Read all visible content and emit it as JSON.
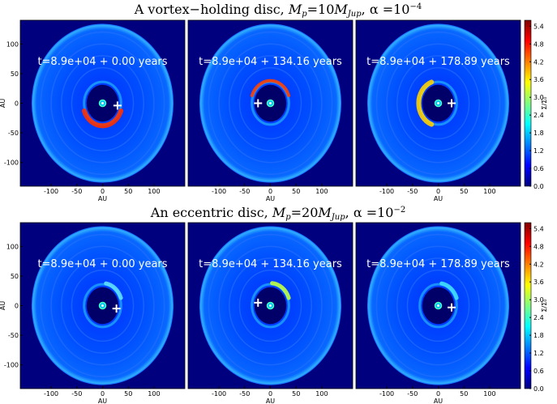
{
  "rows": [
    {
      "title": {
        "text": "A vortex−holding disc, ",
        "m1": "M",
        "s1": "p",
        "eq1": "=10",
        "m2": "M",
        "s2": "Jup",
        "alpha": ", α =10",
        "exp": "−4"
      },
      "panels": [
        "t=8.9e+04 + 0.00 years",
        "t=8.9e+04 + 134.16 years",
        "t=8.9e+04 + 178.89 years"
      ]
    },
    {
      "title": {
        "text": "An eccentric disc, ",
        "m1": "M",
        "s1": "p",
        "eq1": "=20",
        "m2": "M",
        "s2": "Jup",
        "alpha": ", α =10",
        "exp": "−2"
      },
      "panels": [
        "t=8.9e+04 + 0.00 years",
        "t=8.9e+04 + 134.16 years",
        "t=8.9e+04 + 178.89 years"
      ]
    }
  ],
  "axes": {
    "xlabel": "AU",
    "ylabel": "AU",
    "xlim": [
      -160,
      160
    ],
    "ylim": [
      -140,
      140
    ],
    "xticks": [
      -100,
      -50,
      0,
      50,
      100
    ],
    "yticks": [
      -100,
      -50,
      0,
      50,
      100
    ]
  },
  "colorbar": {
    "label": "Σ/Σ₀",
    "lim": [
      0,
      5.6
    ],
    "ticks": [
      {
        "value": 0,
        "label": "0.0"
      },
      {
        "value": 0.6,
        "label": "0.6"
      },
      {
        "value": 1.2,
        "label": "1.2"
      },
      {
        "value": 1.8,
        "label": "1.8"
      },
      {
        "value": 2.4,
        "label": "2.4"
      },
      {
        "value": 3,
        "label": "3.0"
      },
      {
        "value": 3.6,
        "label": "3.6"
      },
      {
        "value": 4.2,
        "label": "4.2"
      },
      {
        "value": 4.8,
        "label": "4.8"
      },
      {
        "value": 5.4,
        "label": "5.4"
      }
    ]
  }
}
